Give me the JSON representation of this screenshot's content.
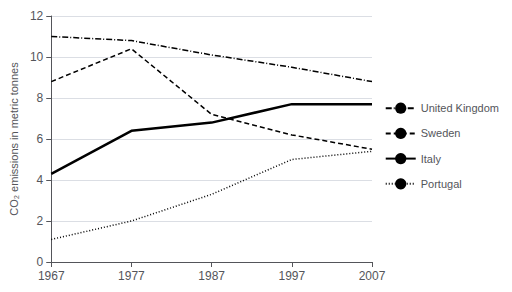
{
  "chart_data": {
    "type": "line",
    "ylabel": "CO₂ emissions in metric tonnes",
    "x": [
      1967,
      1977,
      1987,
      1997,
      2007
    ],
    "series": [
      {
        "name": "United Kingdom",
        "color": "black",
        "line_style": "dashdot",
        "values": [
          11.0,
          10.8,
          10.1,
          9.5,
          8.8
        ]
      },
      {
        "name": "Sweden",
        "color": "black",
        "line_style": "dashed",
        "values": [
          8.8,
          10.4,
          7.2,
          6.2,
          5.5
        ]
      },
      {
        "name": "Italy",
        "color": "black",
        "line_style": "solid",
        "values": [
          4.3,
          6.4,
          6.8,
          7.7,
          7.7
        ]
      },
      {
        "name": "Portugal",
        "color": "black",
        "line_style": "dotted",
        "values": [
          1.1,
          2.0,
          3.3,
          5.0,
          5.4
        ]
      }
    ],
    "xlim": [
      1967,
      2007
    ],
    "xticks": [
      1967,
      1977,
      1987,
      1997,
      2007
    ],
    "ylim": [
      0,
      12
    ],
    "yticks": [
      0,
      2,
      4,
      6,
      8,
      10,
      12
    ],
    "grid": true,
    "legend": "right"
  }
}
